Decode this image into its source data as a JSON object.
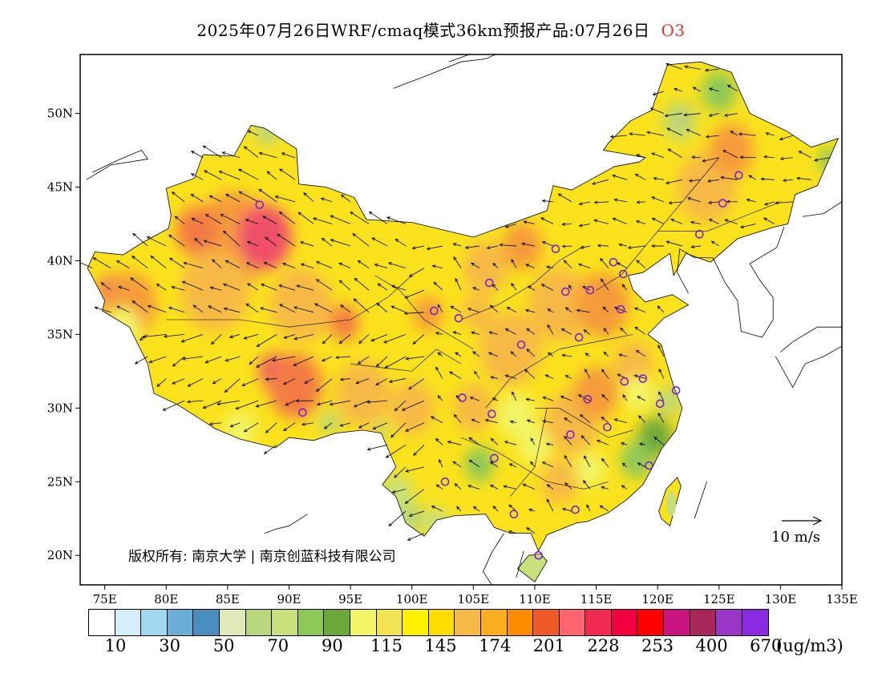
{
  "title": {
    "text": "2025年07月26日WRF/cmaq模式36km预报产品:07月26日",
    "species": "O3"
  },
  "map": {
    "lon_range": [
      73,
      135
    ],
    "lat_range": [
      18,
      54
    ],
    "x_ticks": [
      "75E",
      "80E",
      "85E",
      "90E",
      "95E",
      "100E",
      "105E",
      "110E",
      "115E",
      "120E",
      "125E",
      "130E",
      "135E"
    ],
    "x_tick_lons": [
      75,
      80,
      85,
      90,
      95,
      100,
      105,
      110,
      115,
      120,
      125,
      130,
      135
    ],
    "y_ticks": [
      "20N",
      "25N",
      "30N",
      "35N",
      "40N",
      "45N",
      "50N"
    ],
    "y_tick_lats": [
      20,
      25,
      30,
      35,
      40,
      45,
      50
    ],
    "wind_reference": "10 m/s",
    "copyright": "版权所有: 南京大学 | 南京创蓝科技有限公司",
    "city_markers": [
      [
        87.6,
        43.8
      ],
      [
        91.1,
        29.7
      ],
      [
        101.8,
        36.6
      ],
      [
        103.8,
        36.1
      ],
      [
        106.3,
        38.5
      ],
      [
        111.7,
        40.8
      ],
      [
        112.5,
        37.9
      ],
      [
        114.5,
        38.0
      ],
      [
        116.4,
        39.9
      ],
      [
        117.2,
        39.1
      ],
      [
        117.0,
        36.7
      ],
      [
        113.6,
        34.8
      ],
      [
        108.9,
        34.3
      ],
      [
        104.1,
        30.7
      ],
      [
        106.5,
        29.6
      ],
      [
        114.3,
        30.6
      ],
      [
        112.9,
        28.2
      ],
      [
        115.9,
        28.7
      ],
      [
        117.3,
        31.8
      ],
      [
        118.8,
        32.0
      ],
      [
        121.5,
        31.2
      ],
      [
        120.2,
        30.3
      ],
      [
        119.3,
        26.1
      ],
      [
        113.3,
        23.1
      ],
      [
        108.3,
        22.8
      ],
      [
        110.3,
        20.0
      ],
      [
        106.7,
        26.6
      ],
      [
        102.7,
        25.0
      ],
      [
        125.3,
        43.9
      ],
      [
        126.6,
        45.8
      ],
      [
        123.4,
        41.8
      ]
    ]
  },
  "colorbar": {
    "colors": [
      "#ffffff",
      "#d6eef9",
      "#a0d8f0",
      "#6aaed8",
      "#4a8ec0",
      "#dfeab8",
      "#b9d67a",
      "#c7e07c",
      "#8ec858",
      "#6ca83a",
      "#f2f567",
      "#f2e352",
      "#fff200",
      "#fddc00",
      "#f7b945",
      "#fbae20",
      "#ff8c00",
      "#f05a28",
      "#ff6470",
      "#f02a50",
      "#f00040",
      "#ff0000",
      "#c8147c",
      "#a8285c",
      "#9b35c8",
      "#8a2be2"
    ],
    "labels": [
      "10",
      "30",
      "50",
      "70",
      "90",
      "115",
      "145",
      "174",
      "201",
      "228",
      "253",
      "400",
      "670"
    ],
    "unit": "(ug/m3)"
  }
}
